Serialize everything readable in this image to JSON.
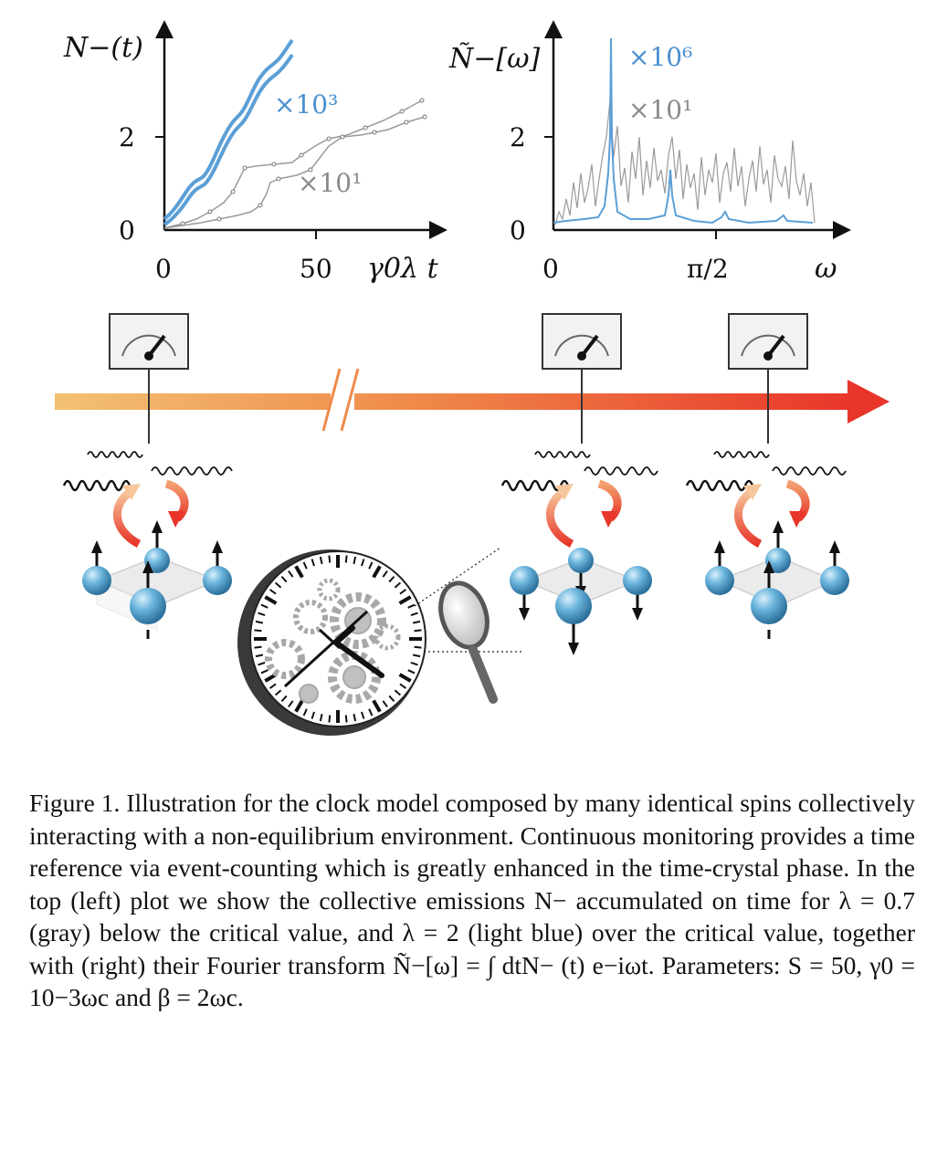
{
  "figure": {
    "left_plot": {
      "ylabel": "N−(t)",
      "xlabel": "γ0λ t",
      "xticks": [
        "0",
        "50"
      ],
      "yticks": [
        "0",
        "2"
      ],
      "mult_blue": "×10³",
      "mult_gray": "×10¹"
    },
    "right_plot": {
      "ylabel": "Ñ−[ω]",
      "xlabel": "ω",
      "xticks": [
        "0",
        "π/2"
      ],
      "yticks": [
        "0",
        "2"
      ],
      "mult_blue": "×10⁶",
      "mult_gray": "×10¹"
    },
    "colors": {
      "blue": "#5b9fd6",
      "gray": "#9a9a9a",
      "arrow_start": "#f3c172",
      "arrow_end": "#e8362a",
      "spin_blue": "#6ab4dc"
    },
    "icons": [
      "meter-icon",
      "clock-icon",
      "magnifier-icon",
      "gear-icon",
      "spin-lattice-icon",
      "wave-icon"
    ]
  },
  "caption": {
    "label": "Figure 1.",
    "text": "Illustration for the clock model composed by many identical spins collectively interacting with a non-equilibrium environment. Continuous monitoring provides a time reference via event-counting which is greatly enhanced in the time-crystal phase. In the top (left) plot we show the collective emissions N− accumulated on time for λ = 0.7 (gray) below the critical value, and λ = 2 (light blue) over the critical value, together with (right) their Fourier transform Ñ−[ω] = ∫ dtN− (t) e−iωt. Parameters: S = 50, γ0 = 10−3ωc and β = 2ωc."
  }
}
